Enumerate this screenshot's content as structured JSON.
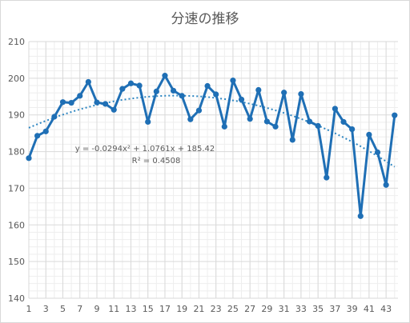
{
  "chart_data": {
    "type": "line",
    "title": "分速の推移",
    "xlabel": "",
    "ylabel": "",
    "ylim": [
      140,
      210
    ],
    "yticks": [
      140,
      150,
      160,
      170,
      180,
      190,
      200,
      210
    ],
    "xlim": [
      1,
      43
    ],
    "xticks": [
      1,
      3,
      5,
      7,
      9,
      11,
      13,
      15,
      17,
      19,
      21,
      23,
      25,
      27,
      29,
      31,
      33,
      35,
      37,
      39,
      41,
      43
    ],
    "grid": true,
    "colors": {
      "series": "#1f6fb5",
      "trend": "#2e86c1",
      "grid_major": "#d9d9d9",
      "grid_minor": "#eeeeee",
      "text": "#595959"
    },
    "series": [
      {
        "x": [
          1,
          2,
          3,
          4,
          5,
          6,
          7,
          8,
          9,
          10,
          11,
          12,
          13,
          14,
          15,
          16,
          17,
          18,
          19,
          20,
          21,
          22,
          23,
          24,
          25,
          26,
          27,
          28,
          29,
          30,
          31,
          32,
          33,
          34,
          35,
          36,
          37,
          38,
          39,
          40,
          41,
          42,
          43,
          44
        ],
        "values": [
          178.2,
          184.3,
          185.5,
          189.5,
          193.5,
          193.3,
          195.2,
          199.0,
          193.4,
          193.0,
          191.4,
          197.1,
          198.6,
          198.0,
          188.1,
          196.4,
          200.7,
          196.6,
          195.2,
          188.8,
          191.2,
          197.9,
          195.6,
          186.8,
          199.4,
          194.2,
          188.9,
          196.8,
          188.2,
          186.8,
          196.1,
          183.2,
          195.7,
          188.2,
          187.0,
          172.9,
          191.7,
          188.1,
          186.1,
          162.4,
          184.6,
          179.8,
          170.9,
          189.9
        ]
      }
    ],
    "trendline": {
      "type": "polynomial",
      "order": 2,
      "coefficients": [
        -0.0294,
        1.0761,
        185.42
      ],
      "equation": "y = -0.0294x² + 1.0761x + 185.42",
      "r2": "R² = 0.4508"
    }
  }
}
